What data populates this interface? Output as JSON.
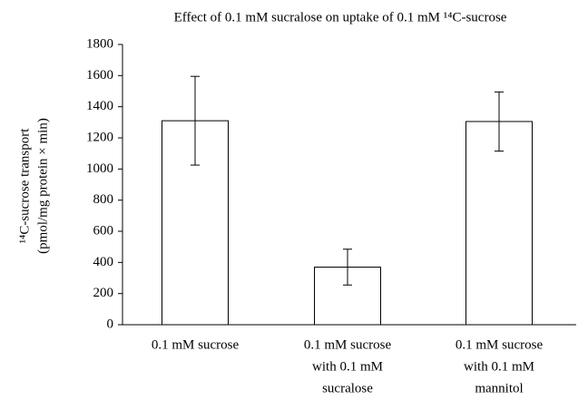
{
  "chart_data": {
    "type": "bar",
    "title": "Effect of 0.1 mM sucralose on uptake of 0.1 mM ¹⁴C-sucrose",
    "y_label": [
      "¹⁴C-sucrose transport",
      "(pmol/mg protein × min)"
    ],
    "categories": [
      [
        "0.1 mM sucrose"
      ],
      [
        "0.1 mM sucrose",
        "with 0.1 mM",
        "sucralose"
      ],
      [
        "0.1 mM sucrose",
        "with 0.1 mM",
        "mannitol"
      ]
    ],
    "values": [
      1310,
      370,
      1305
    ],
    "errors": [
      285,
      115,
      190
    ],
    "color": "#ffffff",
    "ylim": [
      0,
      1800
    ],
    "yticks": [
      0,
      200,
      400,
      600,
      800,
      1000,
      1200,
      1400,
      1600,
      1800
    ],
    "grid": false
  }
}
